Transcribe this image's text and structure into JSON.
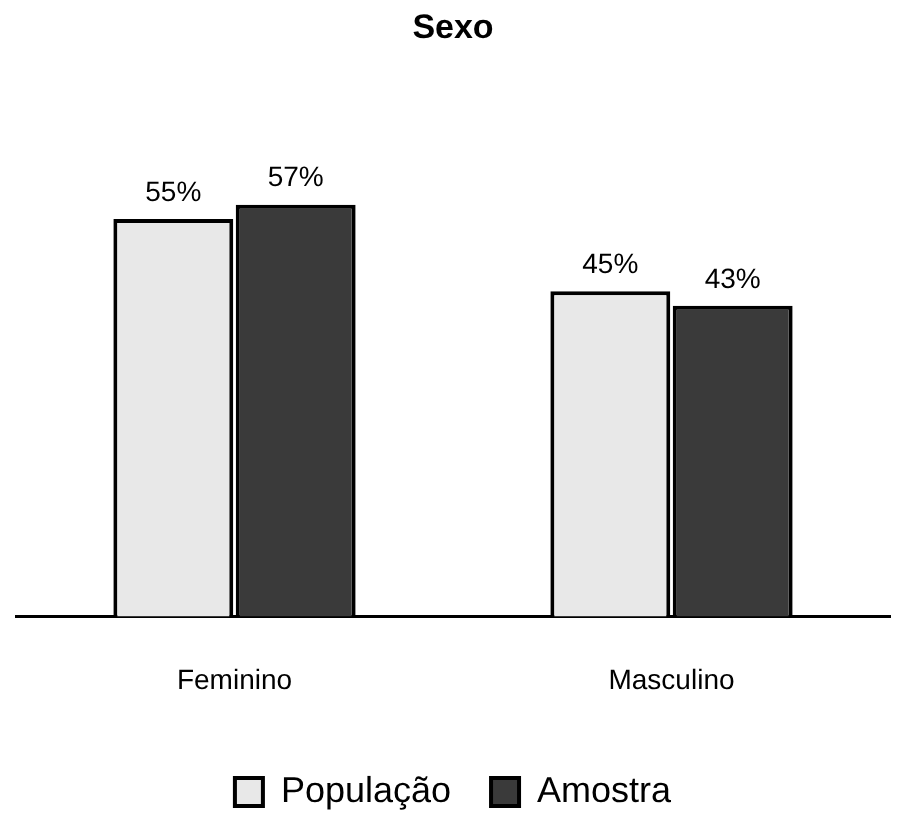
{
  "chart_data": {
    "type": "bar",
    "title": "Sexo",
    "categories": [
      "Feminino",
      "Masculino"
    ],
    "legend": "bottom",
    "grid": false,
    "series": [
      {
        "name": "População",
        "color": "#e8e8e8",
        "values": [
          55,
          45
        ],
        "value_labels": [
          "55%",
          "45%"
        ]
      },
      {
        "name": "Amostra",
        "color": "#3a3a3a",
        "values": [
          57,
          43
        ],
        "value_labels": [
          "57%",
          "43%"
        ]
      }
    ]
  }
}
